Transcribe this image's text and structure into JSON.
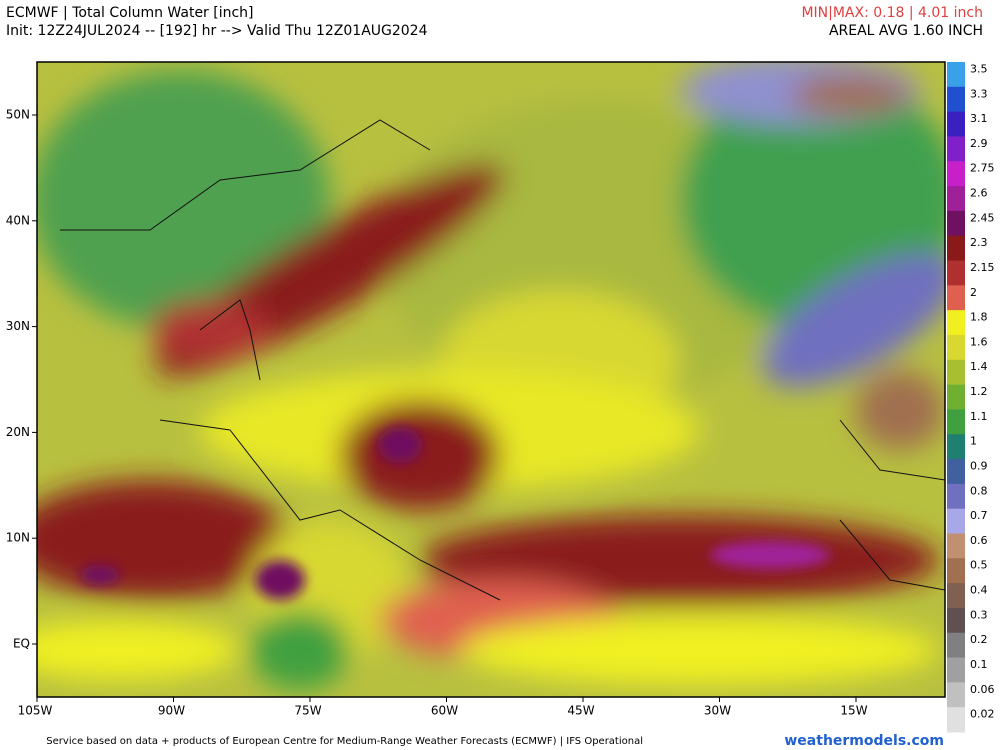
{
  "header": {
    "title": "ECMWF | Total Column Water [inch]",
    "init": "Init: 12Z24JUL2024 -- [192] hr --> Valid Thu 12Z01AUG2024",
    "minmax": "MIN|MAX: 0.18 | 4.01 inch",
    "areal_avg": "AREAL AVG 1.60 INCH"
  },
  "axes": {
    "lon": [
      "105W",
      "90W",
      "75W",
      "60W",
      "45W",
      "30W",
      "15W"
    ],
    "lat": [
      "50N",
      "40N",
      "30N",
      "20N",
      "10N",
      "EQ"
    ]
  },
  "colorbar": {
    "labels": [
      3.5,
      3.3,
      3.1,
      2.9,
      2.75,
      2.6,
      2.45,
      2.3,
      2.15,
      2,
      1.8,
      1.6,
      1.4,
      1.2,
      1.1,
      1,
      0.9,
      0.8,
      0.7,
      0.6,
      0.5,
      0.4,
      0.3,
      0.2,
      0.1,
      0.06,
      0.02
    ],
    "colors": [
      "#3aa0e8",
      "#2050d0",
      "#3a20c0",
      "#8020c8",
      "#c820c8",
      "#a0209a",
      "#701060",
      "#8a1a1a",
      "#b03030",
      "#e06050",
      "#f0f020",
      "#d8d830",
      "#a8c030",
      "#70b030",
      "#40a040",
      "#208070",
      "#4060a0",
      "#7070c0",
      "#a8a8e8",
      "#c09070",
      "#a07050",
      "#806050",
      "#605050",
      "#808080",
      "#a0a0a0",
      "#c0c0c0",
      "#e0e0e0"
    ]
  },
  "footer": {
    "credit": "Service based on data + products of European Centre for Medium-Range Weather Forecasts (ECMWF) | IFS Operational",
    "site": "weathermodels.com"
  }
}
